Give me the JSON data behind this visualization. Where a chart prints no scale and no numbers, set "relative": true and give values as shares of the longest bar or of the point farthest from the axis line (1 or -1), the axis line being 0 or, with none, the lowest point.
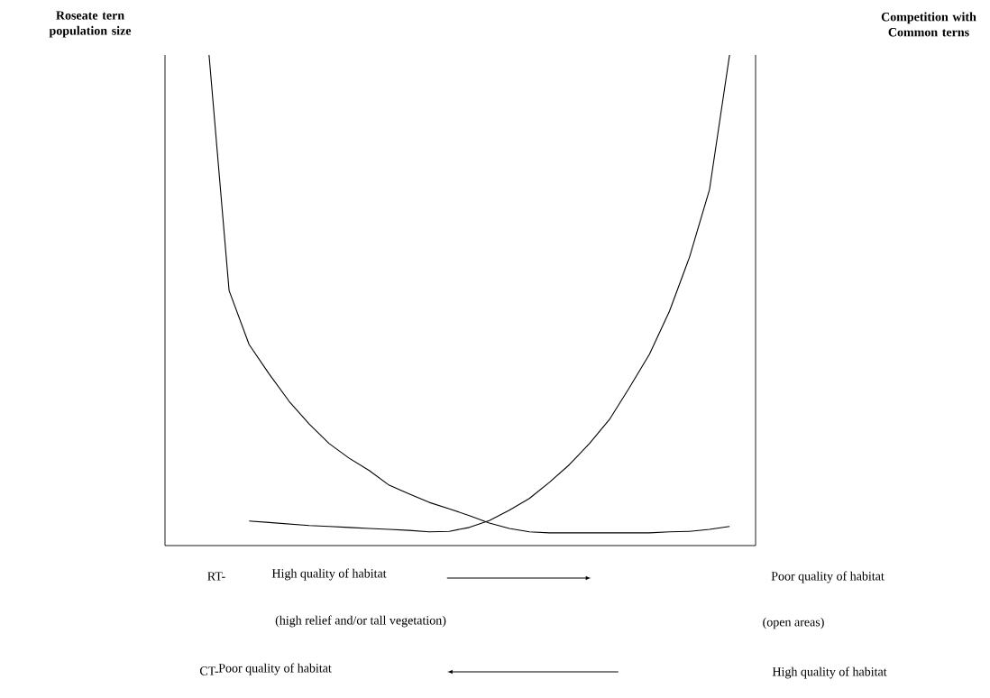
{
  "chart_data": {
    "type": "line",
    "relative": true,
    "categories": [
      null,
      null,
      null,
      null,
      null,
      null,
      null,
      null,
      null,
      null,
      null,
      null,
      null,
      null,
      null,
      null,
      null,
      null,
      null,
      null,
      null,
      null,
      null,
      null,
      null,
      null,
      null
    ],
    "series": [
      {
        "color": "#000000",
        "values": [
          1.0,
          0.52,
          0.41,
          0.35,
          0.294,
          0.248,
          0.208,
          0.178,
          0.153,
          0.123,
          0.105,
          0.088,
          0.075,
          0.061,
          0.046,
          0.035,
          0.028,
          0.026,
          0.026,
          0.026,
          0.026,
          0.026,
          0.026,
          0.028,
          0.029,
          0.033,
          0.039
        ]
      },
      {
        "color": "#000000",
        "values": [
          null,
          null,
          0.05,
          0.047,
          0.044,
          0.041,
          0.039,
          0.037,
          0.035,
          0.033,
          0.031,
          0.028,
          0.029,
          0.037,
          0.051,
          0.072,
          0.096,
          0.129,
          0.165,
          0.208,
          0.257,
          0.322,
          0.39,
          0.478,
          0.588,
          0.726,
          1.0
        ]
      }
    ],
    "annotations": [
      "Roseate tern population size",
      "Competition with Common terns",
      "RT-",
      "High quality of habitat",
      "Poor quality of habitat",
      "(high relief and/or tall vegetation)",
      "(open areas)",
      "CT-",
      "Poor quality of habitat",
      "High quality of habitat"
    ]
  }
}
